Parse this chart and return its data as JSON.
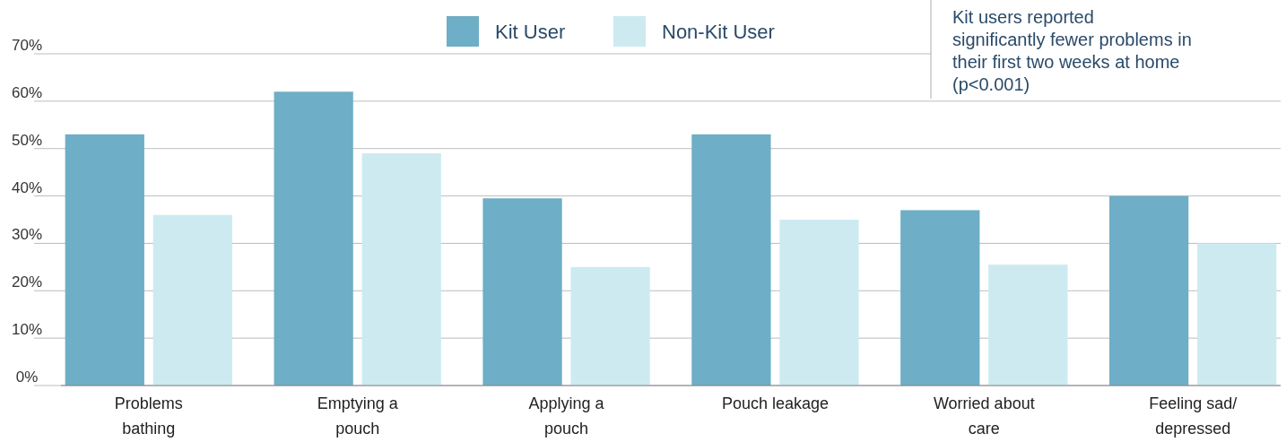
{
  "chart_data": {
    "type": "bar",
    "categories": [
      "Problems bathing",
      "Emptying a pouch",
      "Applying a pouch",
      "Pouch leakage",
      "Worried about care",
      "Feeling sad/ depressed"
    ],
    "series": [
      {
        "name": "Kit User",
        "color": "#6eaec6",
        "values": [
          53,
          62,
          39.5,
          53,
          37,
          40
        ]
      },
      {
        "name": "Non-Kit User",
        "color": "#cdeaf1",
        "values": [
          36,
          49,
          25,
          35,
          25.5,
          30
        ]
      }
    ],
    "ylim": [
      0,
      70
    ],
    "yticks": [
      {
        "value": 0,
        "label": "0%"
      },
      {
        "value": 10,
        "label": "10%"
      },
      {
        "value": 20,
        "label": "20%"
      },
      {
        "value": 30,
        "label": "30%"
      },
      {
        "value": 40,
        "label": "40%"
      },
      {
        "value": 50,
        "label": "50%"
      },
      {
        "value": 60,
        "label": "60%"
      },
      {
        "value": 70,
        "label": "70%"
      }
    ],
    "grid": "y",
    "legend": "top",
    "annotations": [
      "Kit users reported significantly fewer problems in their first two weeks at home (p<0.001)"
    ]
  }
}
